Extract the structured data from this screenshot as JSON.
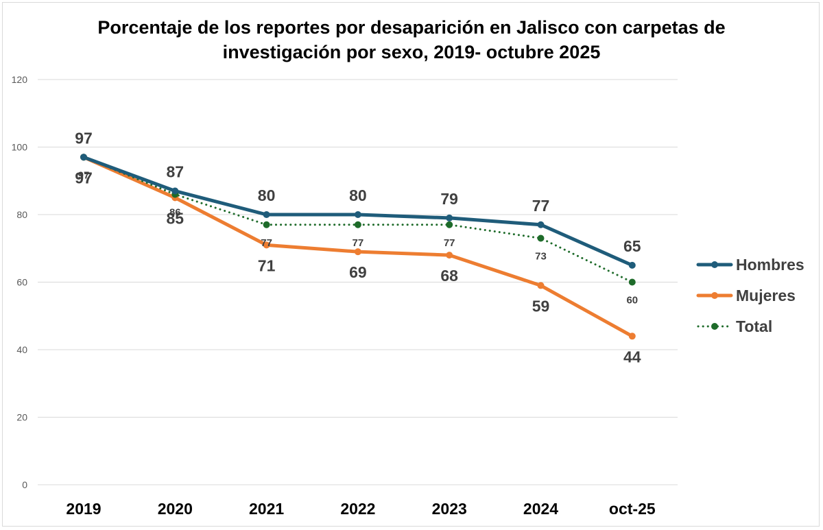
{
  "chart_data": {
    "type": "line",
    "title": [
      "Porcentaje de los reportes por desaparición en Jalisco con carpetas de",
      "investigación por sexo, 2019- octubre 2025"
    ],
    "categories": [
      "2019",
      "2020",
      "2021",
      "2022",
      "2023",
      "2024",
      "oct-25"
    ],
    "ylim": [
      0,
      120
    ],
    "yticks": [
      0,
      20,
      40,
      60,
      80,
      100,
      120
    ],
    "grid": true,
    "legend": "right",
    "series": [
      {
        "name": "Hombres",
        "values": [
          97,
          87,
          80,
          80,
          79,
          77,
          65
        ],
        "color": "#1f5c7a",
        "style": "solid",
        "label_pos": "above"
      },
      {
        "name": "Mujeres",
        "values": [
          97,
          85,
          71,
          69,
          68,
          59,
          44
        ],
        "color": "#ed7d31",
        "style": "solid",
        "label_pos": "below"
      },
      {
        "name": "Total",
        "values": [
          97,
          86,
          77,
          77,
          77,
          73,
          60
        ],
        "color": "#1e6b2a",
        "style": "dotted",
        "label_pos": "below-small"
      }
    ]
  }
}
